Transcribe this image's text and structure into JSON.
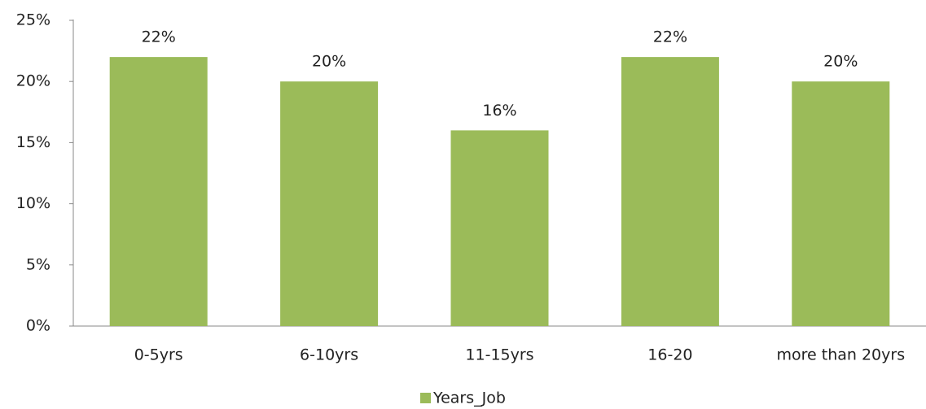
{
  "chart_data": {
    "type": "bar",
    "categories": [
      "0-5yrs",
      "6-10yrs",
      "11-15yrs",
      "16-20",
      "more than 20yrs"
    ],
    "series": [
      {
        "name": "Years_Job",
        "color": "#9bbb59",
        "values": [
          22,
          20,
          16,
          22,
          20
        ],
        "value_labels": [
          "22%",
          "20%",
          "16%",
          "22%",
          "20%"
        ]
      }
    ],
    "ylim": [
      0,
      25
    ],
    "yticks": [
      {
        "value": 0,
        "label": "0%"
      },
      {
        "value": 5,
        "label": "5%"
      },
      {
        "value": 10,
        "label": "10%"
      },
      {
        "value": 15,
        "label": "15%"
      },
      {
        "value": 20,
        "label": "20%"
      },
      {
        "value": 25,
        "label": "25%"
      }
    ],
    "grid": false,
    "legend": "bottom"
  }
}
